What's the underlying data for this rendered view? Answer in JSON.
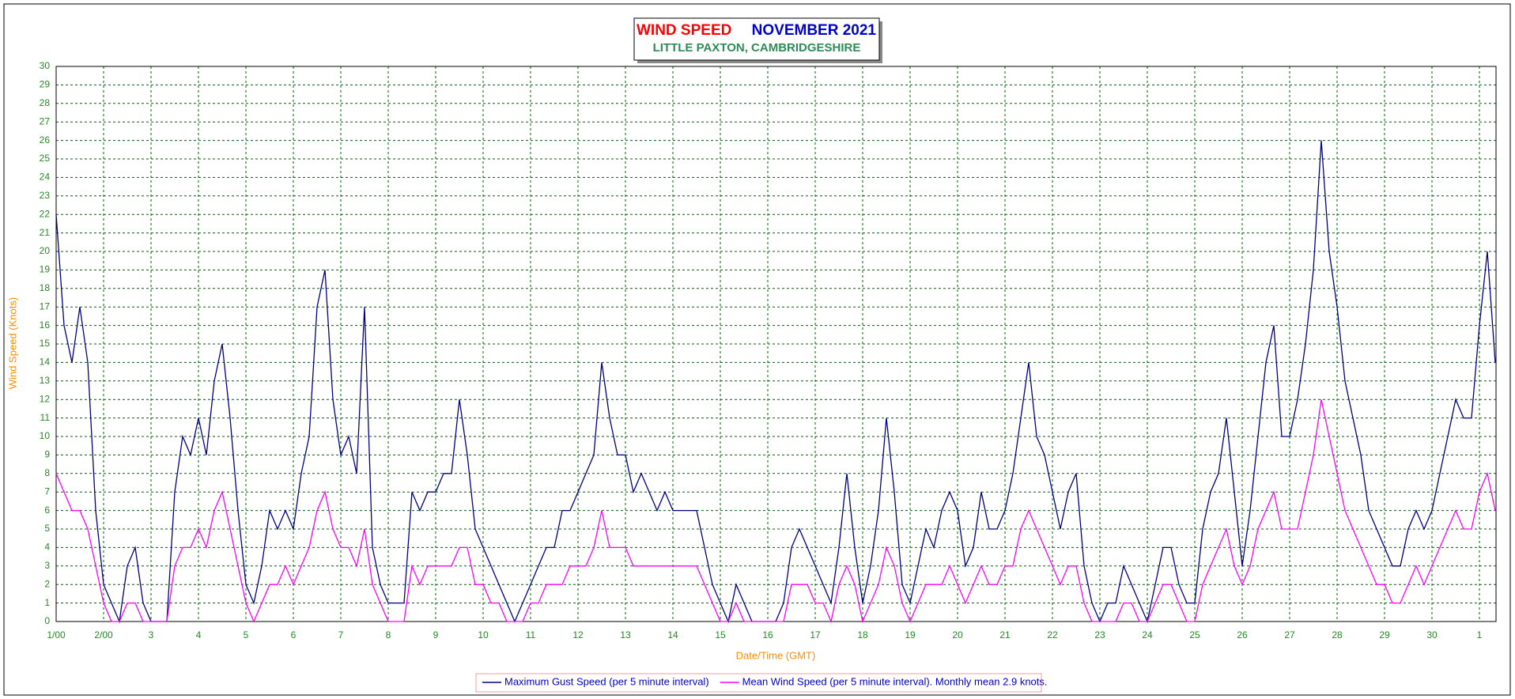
{
  "chart_data": {
    "type": "line",
    "title": "WIND SPEED",
    "title_month": "NOVEMBER 2021",
    "subtitle": "LITTLE PAXTON, CAMBRIDGESHIRE",
    "x_label": "Date/Time (GMT)",
    "y_label": "Wind Speed (Knots)",
    "xlim": [
      1,
      31.35
    ],
    "ylim": [
      0,
      30
    ],
    "grid": true,
    "xticks": [
      {
        "value": 1,
        "label": "1/00"
      },
      {
        "value": 2,
        "label": "2/00"
      },
      3,
      4,
      5,
      6,
      7,
      8,
      9,
      10,
      11,
      12,
      13,
      14,
      15,
      16,
      17,
      18,
      19,
      20,
      21,
      22,
      23,
      24,
      25,
      26,
      27,
      28,
      29,
      30,
      {
        "value": 31,
        "label": "1"
      }
    ],
    "yticks": [
      0,
      1,
      2,
      3,
      4,
      5,
      6,
      7,
      8,
      9,
      10,
      11,
      12,
      13,
      14,
      15,
      16,
      17,
      18,
      19,
      20,
      21,
      22,
      23,
      24,
      25,
      26,
      27,
      28,
      29,
      30
    ],
    "x": [
      1,
      1.167,
      1.333,
      1.5,
      1.667,
      1.833,
      2,
      2.167,
      2.333,
      2.5,
      2.667,
      2.833,
      3,
      3.167,
      3.333,
      3.5,
      3.667,
      3.833,
      4,
      4.167,
      4.333,
      4.5,
      4.667,
      4.833,
      5,
      5.167,
      5.333,
      5.5,
      5.667,
      5.833,
      6,
      6.167,
      6.333,
      6.5,
      6.667,
      6.833,
      7,
      7.167,
      7.333,
      7.5,
      7.667,
      7.833,
      8,
      8.167,
      8.333,
      8.5,
      8.667,
      8.833,
      9,
      9.167,
      9.333,
      9.5,
      9.667,
      9.833,
      10,
      10.167,
      10.333,
      10.5,
      10.667,
      10.833,
      11,
      11.167,
      11.333,
      11.5,
      11.667,
      11.833,
      12,
      12.167,
      12.333,
      12.5,
      12.667,
      12.833,
      13,
      13.167,
      13.333,
      13.5,
      13.667,
      13.833,
      14,
      14.167,
      14.333,
      14.5,
      14.667,
      14.833,
      15,
      15.167,
      15.333,
      15.5,
      15.667,
      15.833,
      16,
      16.167,
      16.333,
      16.5,
      16.667,
      16.833,
      17,
      17.167,
      17.333,
      17.5,
      17.667,
      17.833,
      18,
      18.167,
      18.333,
      18.5,
      18.667,
      18.833,
      19,
      19.167,
      19.333,
      19.5,
      19.667,
      19.833,
      20,
      20.167,
      20.333,
      20.5,
      20.667,
      20.833,
      21,
      21.167,
      21.333,
      21.5,
      21.667,
      21.833,
      22,
      22.167,
      22.333,
      22.5,
      22.667,
      22.833,
      23,
      23.167,
      23.333,
      23.5,
      23.667,
      23.833,
      24,
      24.167,
      24.333,
      24.5,
      24.667,
      24.833,
      25,
      25.167,
      25.333,
      25.5,
      25.667,
      25.833,
      26,
      26.167,
      26.333,
      26.5,
      26.667,
      26.833,
      27,
      27.167,
      27.333,
      27.5,
      27.667,
      27.833,
      28,
      28.167,
      28.333,
      28.5,
      28.667,
      28.833,
      29,
      29.167,
      29.333,
      29.5,
      29.667,
      29.833,
      30,
      30.167,
      30.333,
      30.5,
      30.667,
      30.833,
      31,
      31.167,
      31.333
    ],
    "series": [
      {
        "name": "Maximum Gust Speed (per 5 minute interval)",
        "color": "#000080",
        "values": [
          22,
          16,
          14,
          17,
          14,
          6,
          2,
          1,
          0,
          3,
          4,
          1,
          0,
          0,
          0,
          7,
          10,
          9,
          11,
          9,
          13,
          15,
          11,
          6,
          2,
          1,
          3,
          6,
          5,
          6,
          5,
          8,
          10,
          17,
          19,
          12,
          9,
          10,
          8,
          17,
          4,
          2,
          1,
          1,
          1,
          7,
          6,
          7,
          7,
          8,
          8,
          12,
          9,
          5,
          4,
          3,
          2,
          1,
          0,
          1,
          2,
          3,
          4,
          4,
          6,
          6,
          7,
          8,
          9,
          14,
          11,
          9,
          9,
          7,
          8,
          7,
          6,
          7,
          6,
          6,
          6,
          6,
          4,
          2,
          1,
          0,
          2,
          1,
          0,
          0,
          0,
          0,
          1,
          4,
          5,
          4,
          3,
          2,
          1,
          4,
          8,
          4,
          1,
          3,
          6,
          11,
          7,
          2,
          1,
          3,
          5,
          4,
          6,
          7,
          6,
          3,
          4,
          7,
          5,
          5,
          6,
          8,
          11,
          14,
          10,
          9,
          7,
          5,
          7,
          8,
          3,
          1,
          0,
          1,
          1,
          3,
          2,
          1,
          0,
          2,
          4,
          4,
          2,
          1,
          1,
          5,
          7,
          8,
          11,
          7,
          3,
          6,
          10,
          14,
          16,
          10,
          10,
          12,
          15,
          19,
          26,
          20,
          17,
          13,
          11,
          9,
          6,
          5,
          4,
          3,
          3,
          5,
          6,
          5,
          6,
          8,
          10,
          12,
          11,
          11,
          16,
          20,
          14
        ]
      },
      {
        "name": "Mean Wind Speed (per 5 minute interval). Monthly mean 2.9 knots.",
        "color": "#FF00FF",
        "values": [
          8,
          7,
          6,
          6,
          5,
          3,
          1,
          0,
          0,
          1,
          1,
          0,
          0,
          0,
          0,
          3,
          4,
          4,
          5,
          4,
          6,
          7,
          5,
          3,
          1,
          0,
          1,
          2,
          2,
          3,
          2,
          3,
          4,
          6,
          7,
          5,
          4,
          4,
          3,
          5,
          2,
          1,
          0,
          0,
          0,
          3,
          2,
          3,
          3,
          3,
          3,
          4,
          4,
          2,
          2,
          1,
          1,
          0,
          0,
          0,
          1,
          1,
          2,
          2,
          2,
          3,
          3,
          3,
          4,
          6,
          4,
          4,
          4,
          3,
          3,
          3,
          3,
          3,
          3,
          3,
          3,
          3,
          2,
          1,
          0,
          0,
          1,
          0,
          0,
          0,
          0,
          0,
          0,
          2,
          2,
          2,
          1,
          1,
          0,
          2,
          3,
          2,
          0,
          1,
          2,
          4,
          3,
          1,
          0,
          1,
          2,
          2,
          2,
          3,
          2,
          1,
          2,
          3,
          2,
          2,
          3,
          3,
          5,
          6,
          5,
          4,
          3,
          2,
          3,
          3,
          1,
          0,
          0,
          0,
          0,
          1,
          1,
          0,
          0,
          1,
          2,
          2,
          1,
          0,
          0,
          2,
          3,
          4,
          5,
          3,
          2,
          3,
          5,
          6,
          7,
          5,
          5,
          5,
          7,
          9,
          12,
          10,
          8,
          6,
          5,
          4,
          3,
          2,
          2,
          1,
          1,
          2,
          3,
          2,
          3,
          4,
          5,
          6,
          5,
          5,
          7,
          8,
          6
        ]
      }
    ]
  }
}
